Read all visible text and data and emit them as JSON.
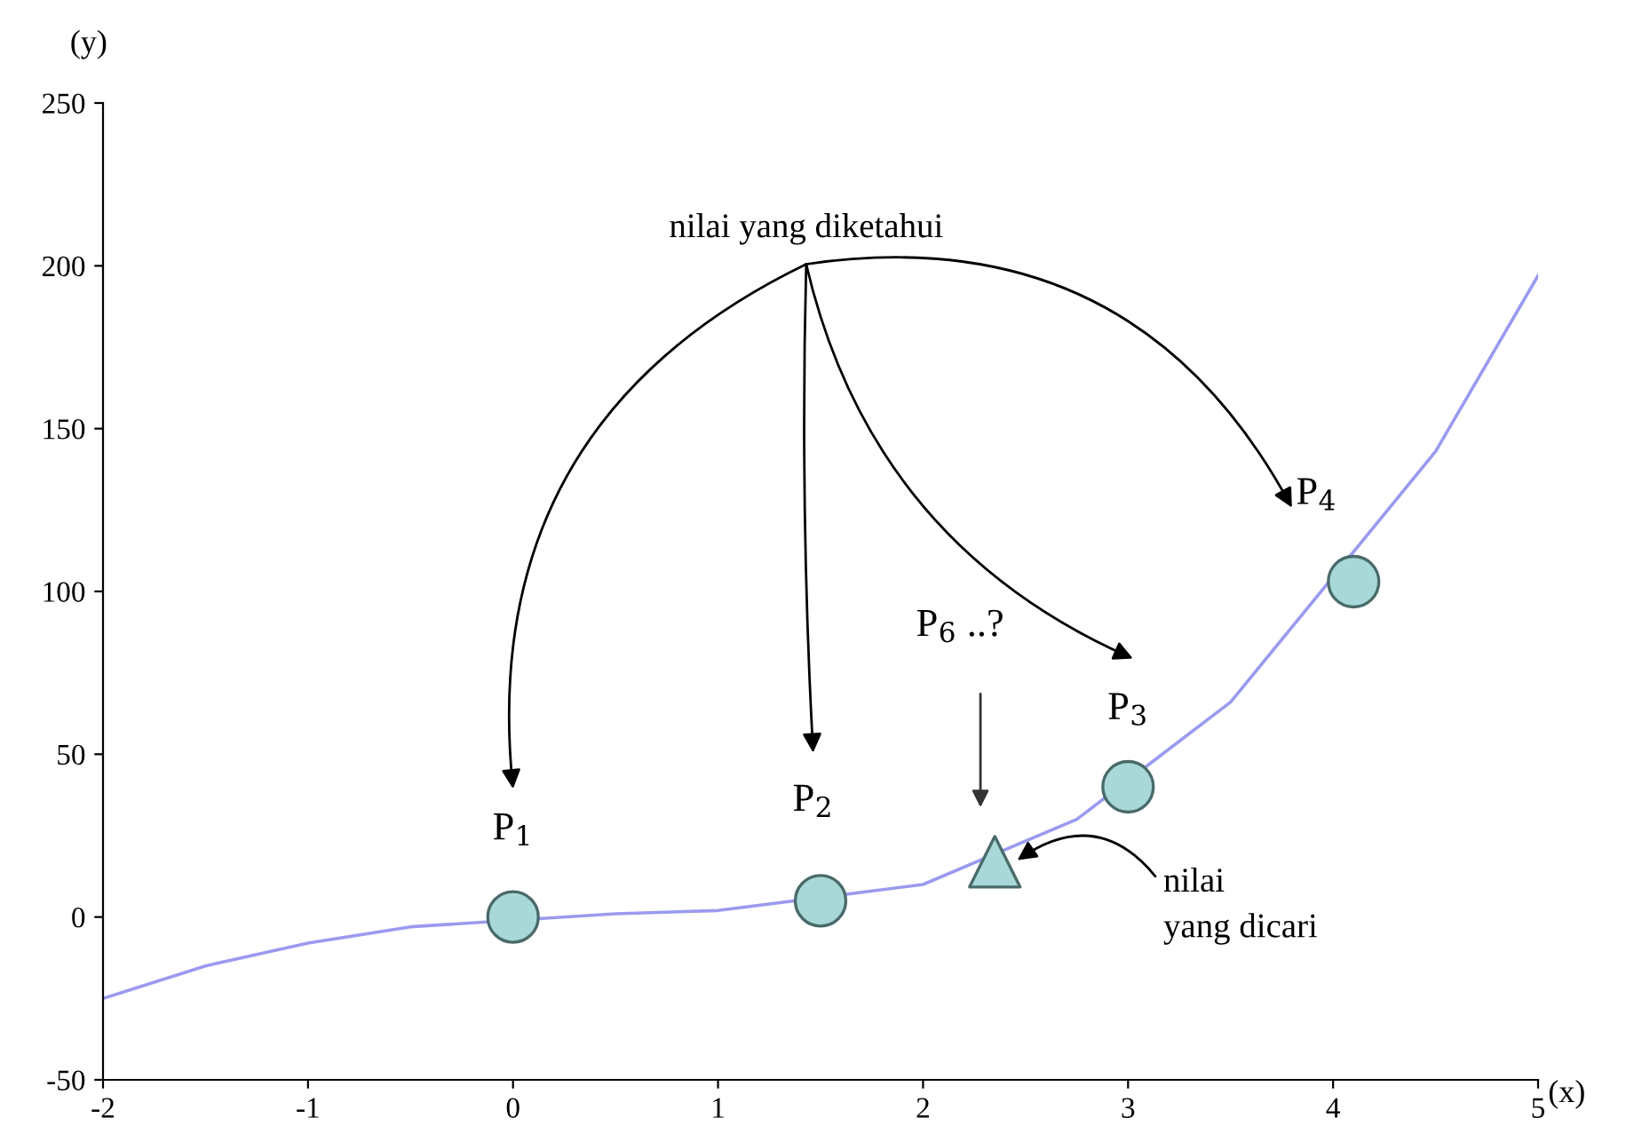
{
  "chart_data": {
    "type": "line",
    "xlabel": "(x)",
    "ylabel": "(y)",
    "xlim": [
      -2,
      5
    ],
    "ylim": [
      -50,
      250
    ],
    "xticks": [
      -2,
      -1,
      0,
      1,
      2,
      3,
      4,
      5
    ],
    "yticks": [
      -50,
      0,
      50,
      100,
      150,
      200,
      250
    ],
    "grid": false,
    "series": [
      {
        "color": "#9a9af0",
        "x": [
          -2,
          -1.5,
          -1,
          -0.5,
          0.5,
          1,
          2,
          2.75,
          3.5,
          4.5,
          5
        ],
        "values": [
          -25,
          -15,
          -8,
          -3,
          1,
          2,
          10,
          30,
          66,
          143,
          197
        ]
      },
      {
        "type": "scatter",
        "marker": "circle",
        "color": "#a8d8d8",
        "x": [
          0,
          1.5,
          3,
          4.1
        ],
        "values": [
          0,
          5,
          40,
          103
        ]
      },
      {
        "type": "scatter",
        "marker": "triangle",
        "color": "#a8d8d8",
        "x": [
          2.35
        ],
        "values": [
          17
        ]
      }
    ],
    "annotations": [
      {
        "text": "P$_{1}$",
        "x": 0,
        "y": 0
      },
      {
        "text": "P$_{2}$",
        "x": 1.5,
        "y": 5
      },
      {
        "text": "P$_{3}$",
        "x": 3,
        "y": 40
      },
      {
        "text": "P$_{4}$",
        "x": 4.1,
        "y": 103
      },
      "P$_{6}$ ..?",
      "nilai yang diketahui",
      {
        "text": "nilai\nyang dicari",
        "x": 2.45,
        "y": 17
      }
    ]
  }
}
